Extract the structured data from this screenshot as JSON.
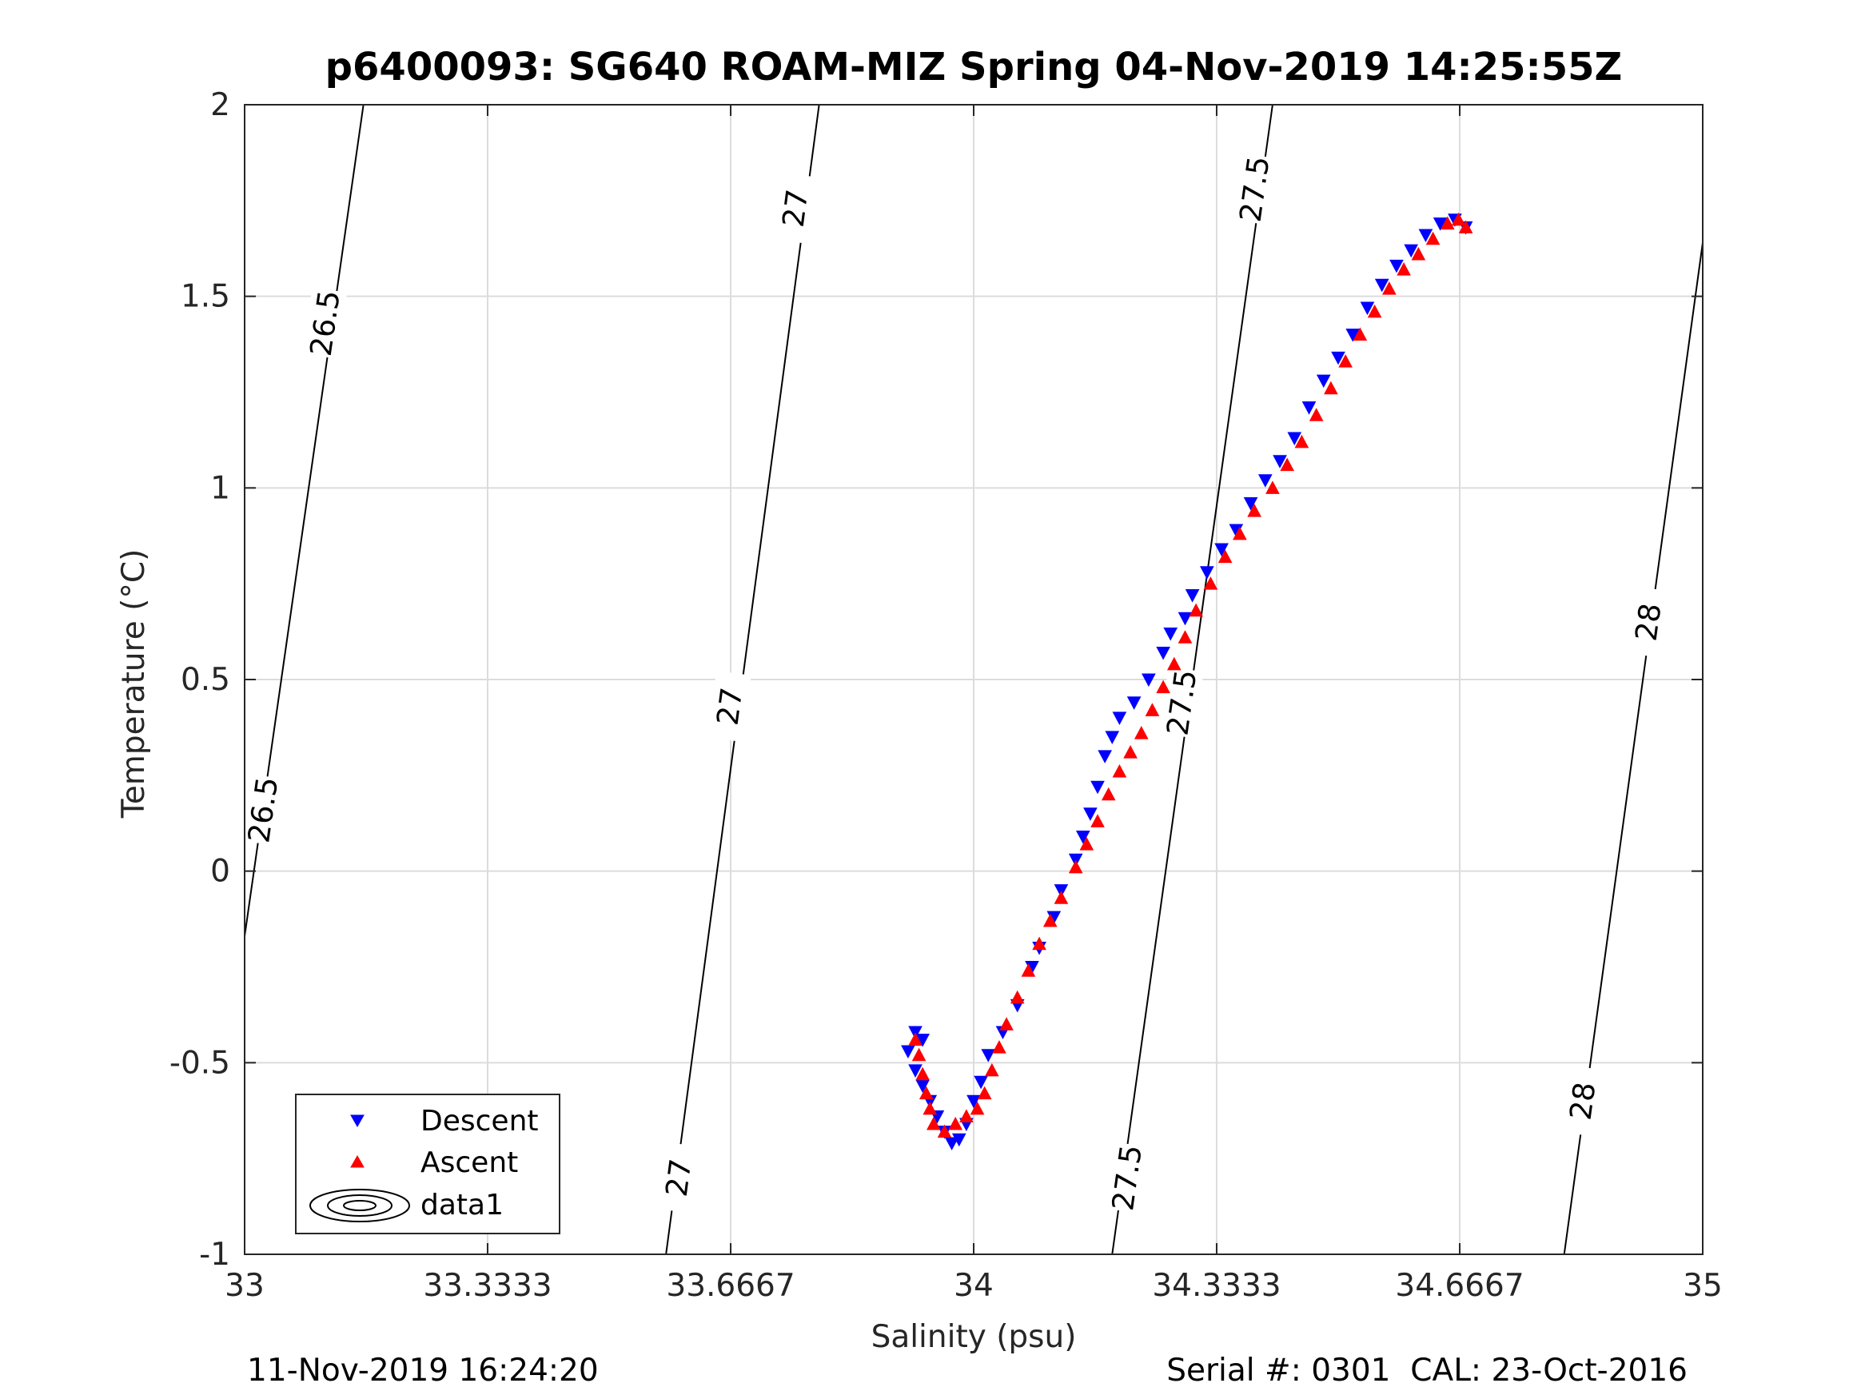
{
  "chart_data": {
    "type": "scatter",
    "title": "p6400093: SG640 ROAM-MIZ Spring 04-Nov-2019 14:25:55Z",
    "xlabel": "Salinity (psu)",
    "ylabel": "Temperature (°C)",
    "xlim": [
      33,
      35
    ],
    "ylim": [
      -1,
      2
    ],
    "xticks": [
      33,
      33.3333,
      33.6667,
      34,
      34.3333,
      34.6667,
      35
    ],
    "xtick_labels": [
      "33",
      "33.3333",
      "33.6667",
      "34",
      "34.3333",
      "34.6667",
      "35"
    ],
    "yticks": [
      -1,
      -0.5,
      0,
      0.5,
      1,
      1.5,
      2
    ],
    "ytick_labels": [
      "-1",
      "-0.5",
      "0",
      "0.5",
      "1",
      "1.5",
      "2"
    ],
    "grid": true,
    "legend_position": "bottom-left",
    "legend": [
      "Descent",
      "Ascent",
      "data1"
    ],
    "colors": {
      "descent": "#0000ff",
      "ascent": "#ff0000",
      "contour": "#000000",
      "grid": "#dcdcdc"
    },
    "series": [
      {
        "name": "Descent",
        "marker": "triangle-down",
        "color": "#0000ff",
        "points": [
          [
            33.92,
            -0.42
          ],
          [
            33.93,
            -0.44
          ],
          [
            33.91,
            -0.47
          ],
          [
            33.92,
            -0.52
          ],
          [
            33.93,
            -0.56
          ],
          [
            33.94,
            -0.6
          ],
          [
            33.95,
            -0.64
          ],
          [
            33.96,
            -0.68
          ],
          [
            33.97,
            -0.71
          ],
          [
            33.98,
            -0.7
          ],
          [
            33.99,
            -0.66
          ],
          [
            34.0,
            -0.6
          ],
          [
            34.01,
            -0.55
          ],
          [
            34.02,
            -0.48
          ],
          [
            34.04,
            -0.42
          ],
          [
            34.06,
            -0.35
          ],
          [
            34.08,
            -0.25
          ],
          [
            34.09,
            -0.2
          ],
          [
            34.11,
            -0.12
          ],
          [
            34.12,
            -0.05
          ],
          [
            34.14,
            0.03
          ],
          [
            34.15,
            0.09
          ],
          [
            34.16,
            0.15
          ],
          [
            34.17,
            0.22
          ],
          [
            34.18,
            0.3
          ],
          [
            34.19,
            0.35
          ],
          [
            34.2,
            0.4
          ],
          [
            34.22,
            0.44
          ],
          [
            34.24,
            0.5
          ],
          [
            34.26,
            0.57
          ],
          [
            34.27,
            0.62
          ],
          [
            34.29,
            0.66
          ],
          [
            34.3,
            0.72
          ],
          [
            34.32,
            0.78
          ],
          [
            34.34,
            0.84
          ],
          [
            34.36,
            0.89
          ],
          [
            34.38,
            0.96
          ],
          [
            34.4,
            1.02
          ],
          [
            34.42,
            1.07
          ],
          [
            34.44,
            1.13
          ],
          [
            34.46,
            1.21
          ],
          [
            34.48,
            1.28
          ],
          [
            34.5,
            1.34
          ],
          [
            34.52,
            1.4
          ],
          [
            34.54,
            1.47
          ],
          [
            34.56,
            1.53
          ],
          [
            34.58,
            1.58
          ],
          [
            34.6,
            1.62
          ],
          [
            34.62,
            1.66
          ],
          [
            34.64,
            1.69
          ],
          [
            34.66,
            1.7
          ],
          [
            34.675,
            1.68
          ]
        ]
      },
      {
        "name": "Ascent",
        "marker": "triangle-up",
        "color": "#ff0000",
        "points": [
          [
            33.92,
            -0.44
          ],
          [
            33.925,
            -0.48
          ],
          [
            33.93,
            -0.53
          ],
          [
            33.935,
            -0.58
          ],
          [
            33.94,
            -0.62
          ],
          [
            33.945,
            -0.66
          ],
          [
            33.96,
            -0.68
          ],
          [
            33.975,
            -0.66
          ],
          [
            33.99,
            -0.64
          ],
          [
            34.005,
            -0.62
          ],
          [
            34.015,
            -0.58
          ],
          [
            34.025,
            -0.52
          ],
          [
            34.035,
            -0.46
          ],
          [
            34.045,
            -0.4
          ],
          [
            34.06,
            -0.33
          ],
          [
            34.075,
            -0.26
          ],
          [
            34.09,
            -0.19
          ],
          [
            34.105,
            -0.13
          ],
          [
            34.12,
            -0.07
          ],
          [
            34.14,
            0.01
          ],
          [
            34.155,
            0.07
          ],
          [
            34.17,
            0.13
          ],
          [
            34.185,
            0.2
          ],
          [
            34.2,
            0.26
          ],
          [
            34.215,
            0.31
          ],
          [
            34.23,
            0.36
          ],
          [
            34.245,
            0.42
          ],
          [
            34.26,
            0.48
          ],
          [
            34.275,
            0.54
          ],
          [
            34.29,
            0.61
          ],
          [
            34.305,
            0.68
          ],
          [
            34.325,
            0.75
          ],
          [
            34.345,
            0.82
          ],
          [
            34.365,
            0.88
          ],
          [
            34.385,
            0.94
          ],
          [
            34.41,
            1.0
          ],
          [
            34.43,
            1.06
          ],
          [
            34.45,
            1.12
          ],
          [
            34.47,
            1.19
          ],
          [
            34.49,
            1.26
          ],
          [
            34.51,
            1.33
          ],
          [
            34.53,
            1.4
          ],
          [
            34.55,
            1.46
          ],
          [
            34.57,
            1.52
          ],
          [
            34.59,
            1.57
          ],
          [
            34.61,
            1.61
          ],
          [
            34.63,
            1.65
          ],
          [
            34.65,
            1.69
          ],
          [
            34.665,
            1.7
          ],
          [
            34.675,
            1.68
          ]
        ]
      },
      {
        "name": "data1",
        "type": "contour",
        "color": "#000000",
        "lines": [
          {
            "level": "26.5",
            "points": [
              [
                33.0,
                -0.17
              ],
              [
                33.163,
                2.0
              ]
            ]
          },
          {
            "level": "27",
            "points": [
              [
                33.578,
                -1.0
              ],
              [
                33.788,
                2.0
              ]
            ]
          },
          {
            "level": "27.5",
            "points": [
              [
                34.19,
                -1.0
              ],
              [
                34.41,
                2.0
              ]
            ]
          },
          {
            "level": "28",
            "points": [
              [
                34.81,
                -1.0
              ],
              [
                35.0,
                1.64
              ]
            ]
          }
        ],
        "labels": [
          {
            "text": "26.5",
            "x": 33.11,
            "y": 1.43
          },
          {
            "text": "26.5",
            "x": 33.025,
            "y": 0.16
          },
          {
            "text": "27",
            "x": 33.755,
            "y": 1.73
          },
          {
            "text": "27",
            "x": 33.665,
            "y": 0.43
          },
          {
            "text": "27",
            "x": 33.595,
            "y": -0.8
          },
          {
            "text": "27.5",
            "x": 34.385,
            "y": 1.78
          },
          {
            "text": "27.5",
            "x": 34.285,
            "y": 0.44
          },
          {
            "text": "27.5",
            "x": 34.21,
            "y": -0.8
          },
          {
            "text": "28",
            "x": 34.925,
            "y": 0.65
          },
          {
            "text": "28",
            "x": 34.835,
            "y": -0.6
          }
        ]
      }
    ]
  },
  "footer": {
    "left": "11-Nov-2019 16:24:20",
    "right": "Serial #: 0301  CAL: 23-Oct-2016"
  }
}
